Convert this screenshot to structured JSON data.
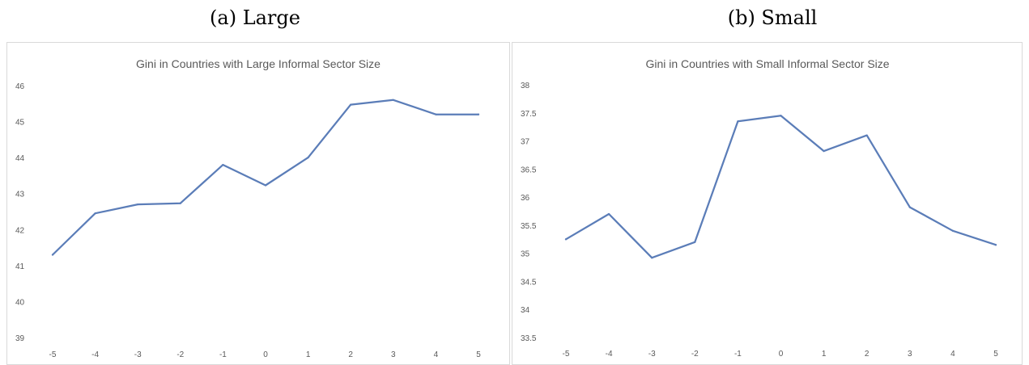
{
  "captions": {
    "a": "(a) Large",
    "b": "(b) Small"
  },
  "colors": {
    "line": "#5B7DB8",
    "border": "#D9D9D9",
    "text": "#595959"
  },
  "chart_data": [
    {
      "type": "line",
      "title": "Gini in Countries with Large Informal Sector Size",
      "categories": [
        "-5",
        "-4",
        "-3",
        "-2",
        "-1",
        "0",
        "1",
        "2",
        "3",
        "4",
        "5"
      ],
      "series": [
        {
          "values": [
            41.3,
            42.45,
            42.7,
            42.73,
            43.8,
            43.23,
            44.0,
            45.47,
            45.6,
            45.2,
            45.2
          ]
        }
      ],
      "ylim": [
        39,
        46
      ],
      "yticks": [
        "39",
        "40",
        "41",
        "42",
        "43",
        "44",
        "45",
        "46"
      ],
      "grid": false,
      "legend": "none"
    },
    {
      "type": "line",
      "title": "Gini in Countries with Small Informal Sector Size",
      "categories": [
        "-5",
        "-4",
        "-3",
        "-2",
        "-1",
        "0",
        "1",
        "2",
        "3",
        "4",
        "5"
      ],
      "series": [
        {
          "values": [
            35.25,
            35.7,
            34.92,
            35.2,
            37.35,
            37.45,
            36.82,
            37.1,
            35.82,
            35.4,
            35.15
          ]
        }
      ],
      "ylim": [
        33.5,
        38
      ],
      "yticks": [
        "33.5",
        "34",
        "34.5",
        "35",
        "35.5",
        "36",
        "36.5",
        "37",
        "37.5",
        "38"
      ],
      "grid": false,
      "legend": "none"
    }
  ]
}
